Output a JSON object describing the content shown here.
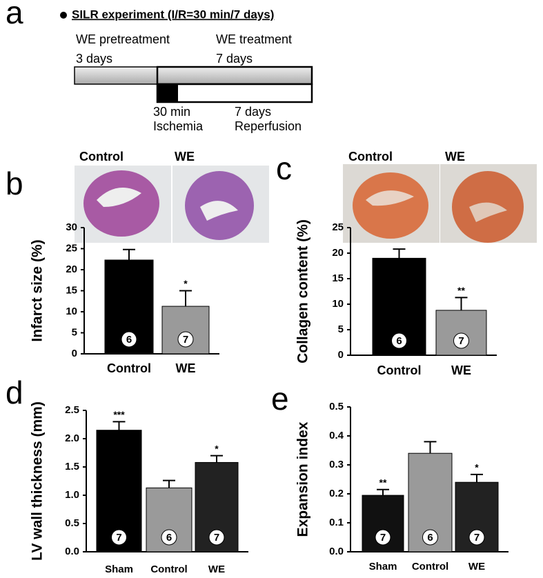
{
  "panel_letters": [
    "a",
    "b",
    "c",
    "d",
    "e"
  ],
  "panel_a": {
    "title": "SILR experiment (I/R=30 min/7 days)",
    "pretreatment": "WE pretreatment",
    "pretreatment_days": "3 days",
    "treatment": "WE treatment",
    "treatment_days": "7 days",
    "ischemia_time": "30 min",
    "ischemia": "Ischemia",
    "reperfusion_time": "7 days",
    "reperfusion": "Reperfusion"
  },
  "chart_data": [
    {
      "type": "bar",
      "y_label": "Infarct size (%)",
      "image_labels": [
        "Control",
        "WE"
      ],
      "categories": [
        "Control",
        "WE"
      ],
      "values": [
        22.3,
        11.3
      ],
      "errors": [
        2.5,
        3.7
      ],
      "colors": [
        "#000000",
        "#9a9a9a"
      ],
      "n": [
        6,
        7
      ],
      "significance": [
        null,
        "*"
      ],
      "ylim": [
        0,
        30
      ],
      "yticks": [
        0,
        5,
        10,
        15,
        20,
        25,
        30
      ]
    },
    {
      "type": "bar",
      "y_label": "Collagen content (%)",
      "image_labels": [
        "Control",
        "WE"
      ],
      "categories": [
        "Control",
        "WE"
      ],
      "values": [
        19,
        8.8
      ],
      "errors": [
        1.8,
        2.5
      ],
      "colors": [
        "#000000",
        "#9a9a9a"
      ],
      "n": [
        6,
        7
      ],
      "significance": [
        null,
        "**"
      ],
      "ylim": [
        0,
        25
      ],
      "yticks": [
        0,
        5,
        10,
        15,
        20,
        25
      ]
    },
    {
      "type": "bar",
      "y_label": "LV wall thickness (mm)",
      "categories": [
        "Sham",
        "Control",
        "WE"
      ],
      "values": [
        2.15,
        1.13,
        1.58
      ],
      "errors": [
        0.15,
        0.13,
        0.12
      ],
      "colors": [
        "#000000",
        "#9a9a9a",
        "#222222"
      ],
      "n": [
        7,
        6,
        7
      ],
      "significance": [
        "***",
        null,
        "*"
      ],
      "ylim": [
        0,
        2.5
      ],
      "yticks": [
        {
          "value": 0,
          "label": "0.0"
        },
        0.5,
        {
          "value": 1,
          "label": "1.0"
        },
        1.5,
        {
          "value": 2,
          "label": "2.0"
        },
        2.5
      ]
    },
    {
      "type": "bar",
      "y_label": "Expansion index",
      "categories": [
        "Sham",
        "Control",
        "WE"
      ],
      "values": [
        0.195,
        0.34,
        0.24
      ],
      "errors": [
        0.02,
        0.04,
        0.027
      ],
      "colors": [
        "#111111",
        "#9a9a9a",
        "#222222"
      ],
      "n": [
        7,
        6,
        7
      ],
      "significance": [
        "**",
        null,
        "*"
      ],
      "ylim": [
        0,
        0.5
      ],
      "yticks": [
        {
          "value": 0,
          "label": "0.0"
        },
        0.1,
        0.2,
        0.3,
        0.4,
        0.5
      ]
    }
  ]
}
